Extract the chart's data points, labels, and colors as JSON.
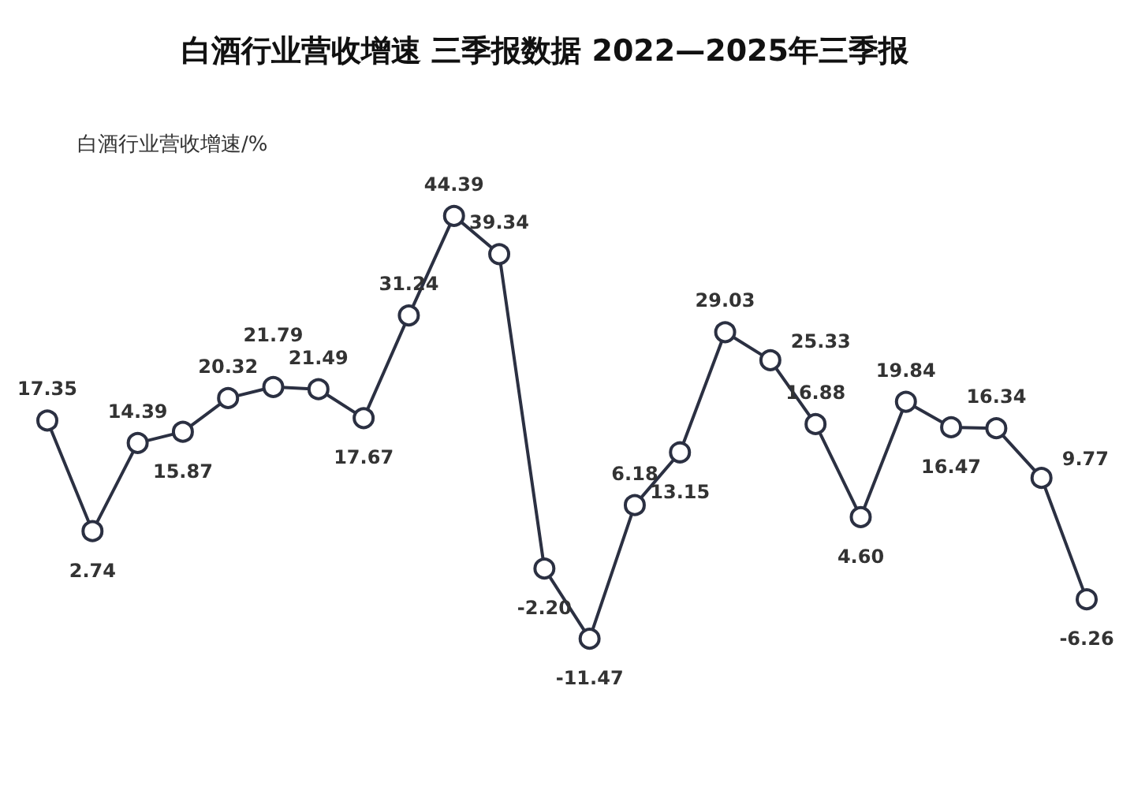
{
  "chart_data": {
    "type": "line",
    "title": "白酒行业营收增速 三季报数据 2022—2025年三季报",
    "categories": [
      null,
      null,
      null,
      null,
      null,
      null,
      null,
      null,
      null,
      null,
      null,
      null,
      null,
      null,
      null,
      null,
      null,
      null,
      null,
      null,
      null,
      null,
      null,
      null
    ],
    "series": [
      {
        "name": "白酒行业营收增速/%",
        "color": "#2b3042",
        "values": [
          17.35,
          2.74,
          14.39,
          15.87,
          20.32,
          21.79,
          21.49,
          17.67,
          31.24,
          44.39,
          39.34,
          -2.2,
          -11.47,
          6.18,
          13.15,
          29.03,
          25.33,
          16.88,
          4.6,
          19.84,
          16.47,
          16.34,
          9.77,
          -6.26
        ],
        "value_labels": [
          "17.35",
          "2.74",
          "14.39",
          "15.87",
          "20.32",
          "21.79",
          "21.49",
          "17.67",
          "31.24",
          "44.39",
          "39.34",
          "-2.20",
          "-11.47",
          "6.18",
          "13.15",
          "29.03",
          "25.33",
          "16.88",
          "4.60",
          "19.84",
          "16.47",
          "16.34",
          "9.77",
          "-6.26"
        ]
      }
    ],
    "legend": "top left",
    "grid": false,
    "marker": "circle",
    "line_style": "solid",
    "tick_labels": false
  }
}
